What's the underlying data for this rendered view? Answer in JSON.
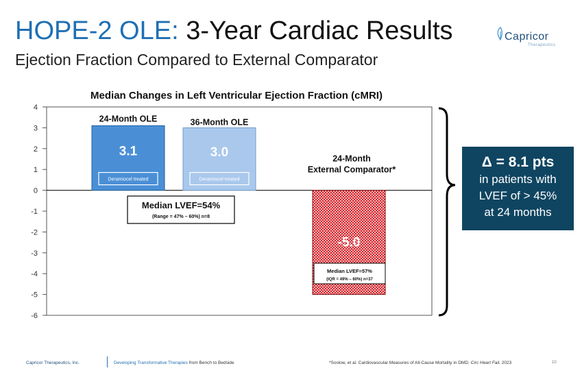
{
  "slide": {
    "title_part1": "HOPE-2 OLE:",
    "title_part2": "3-Year Cardiac Results",
    "subtitle": "Ejection Fraction Compared to External Comparator",
    "logo_name": "Capricor",
    "logo_sub": "Therapeutics",
    "delta_headline": "Δ = 8.1 pts",
    "delta_lines": [
      "in patients with",
      "LVEF of > 45%",
      "at 24 months"
    ],
    "footer_company": "Capricor Therapeutics, Inc.",
    "footer_tagline_highlight": "Developing Transformative Therapies",
    "footer_tagline_rest": "from Bench to Bedside",
    "footer_citation": "*Soslow, et al. Cardiovascular Measures of All-Cause Mortality in DMD.",
    "footer_journal": "Circ Heart Fail.",
    "footer_year": "2023",
    "page_number": "10",
    "colors": {
      "title_blue": "#1f6fb3",
      "bar1": "#4a8fd6",
      "bar2": "#a9c8ec",
      "bar3": "#d9232b",
      "delta_bg": "#0f4561"
    }
  },
  "chart_data": {
    "type": "bar",
    "title": "Median Changes in Left Ventricular Ejection Fraction (cMRI)",
    "ylim": [
      -6,
      4
    ],
    "yticks": [
      4,
      3,
      2,
      1,
      0,
      -1,
      -2,
      -3,
      -4,
      -5,
      -6
    ],
    "categories": [
      "24-Month OLE",
      "36-Month OLE",
      "24-Month External Comparator*"
    ],
    "category_lines": [
      [
        "24-Month OLE"
      ],
      [
        "36-Month OLE"
      ],
      [
        "24-Month",
        "External Comparator*"
      ]
    ],
    "values": [
      3.1,
      3.0,
      -5.0
    ],
    "value_labels": [
      "3.1",
      "3.0",
      "-5.0"
    ],
    "bar_tags": [
      "Deramiocel treated",
      "Deramiocel treated",
      ""
    ],
    "annotations": [
      {
        "bold": "Median LVEF=54%",
        "small": "(Range = 47% – 60%) n=8"
      },
      {
        "bold": "Median LVEF=57%",
        "small": "(IQR = 49% – 60%) n=37"
      }
    ]
  }
}
